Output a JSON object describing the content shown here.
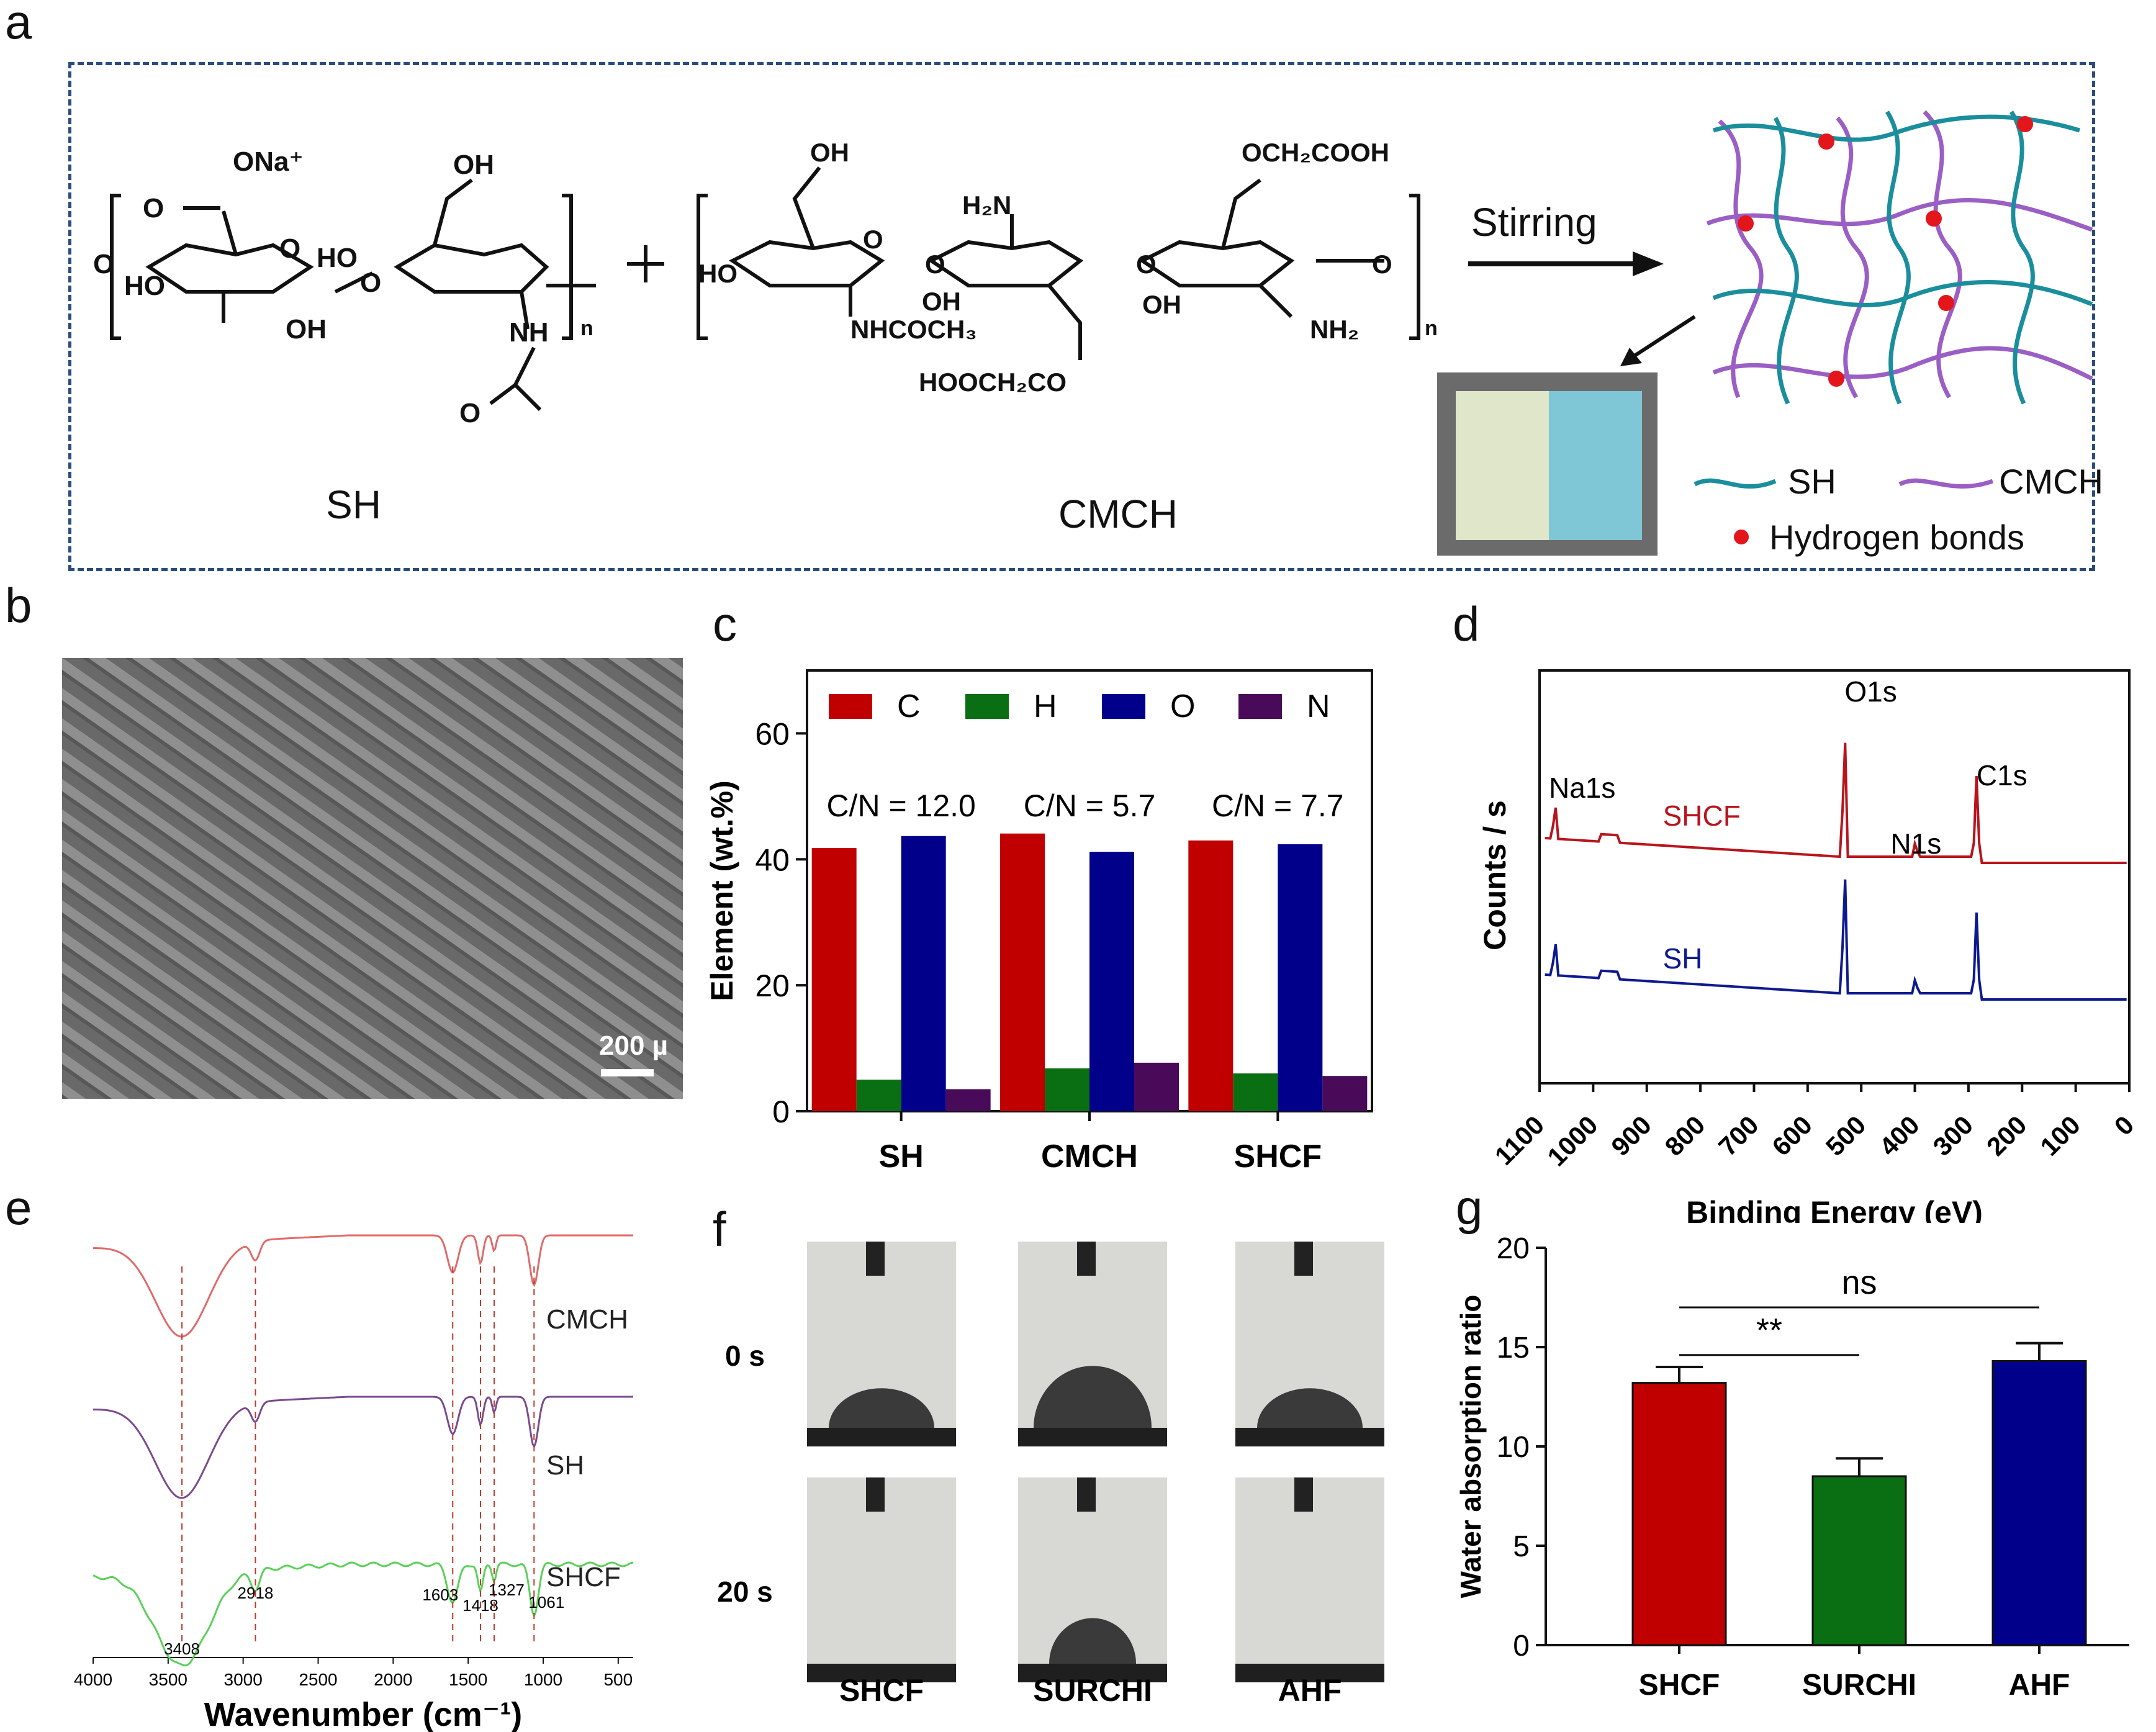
{
  "panel_labels": [
    "a",
    "b",
    "c",
    "d",
    "e",
    "f",
    "g"
  ],
  "panel_a": {
    "sh_label": "SH",
    "cmch_label": "CMCH",
    "arrow_label": "Stirring",
    "legend": {
      "sh": "SH",
      "cmch": "CMCH",
      "hbond": "Hydrogen bonds"
    },
    "colors": {
      "sh": "#1a8e9c",
      "cmch": "#9a5ec4",
      "hbond": "#e3161c",
      "frame": "#2b4c7e"
    },
    "sh_groups": [
      "O",
      "ONa⁺",
      "OH",
      "O",
      "HO",
      "O",
      "HO",
      "OH",
      "O",
      "NH",
      "O",
      "n"
    ],
    "cmch_groups": [
      "OH",
      "H₂N",
      "OCH₂COOH",
      "O",
      "O",
      "O",
      "HO",
      "OH",
      "NHCOCH₃",
      "HOOCH₂CO",
      "OH",
      "NH₂",
      "O",
      "n"
    ]
  },
  "panel_b": {
    "scale_bar": "200 µ"
  },
  "chart_data": [
    {
      "id": "c",
      "type": "bar",
      "categories": [
        "SH",
        "CMCH",
        "SHCF"
      ],
      "series": [
        {
          "name": "C",
          "values": [
            41.8,
            44.1,
            43.0
          ],
          "color": "#c00000"
        },
        {
          "name": "H",
          "values": [
            5.0,
            6.8,
            6.0
          ],
          "color": "#0a6e12"
        },
        {
          "name": "O",
          "values": [
            43.7,
            41.2,
            42.4
          ],
          "color": "#00008b"
        },
        {
          "name": "N",
          "values": [
            3.5,
            7.7,
            5.6
          ],
          "color": "#4a0a5a"
        }
      ],
      "annotations": [
        "C/N = 12.0",
        "C/N = 5.7",
        "C/N = 7.7"
      ],
      "ylabel": "Element (wt.%)",
      "ylim": [
        0,
        70
      ],
      "yticks": [
        0,
        20,
        40,
        60
      ],
      "legend_position": "top"
    },
    {
      "id": "d",
      "type": "line",
      "xlabel": "Binding Energy (eV)",
      "ylabel": "Counts / s",
      "xlim": [
        1100,
        0
      ],
      "xticks": [
        1100,
        1000,
        900,
        800,
        700,
        600,
        500,
        400,
        300,
        200,
        100,
        0
      ],
      "series": [
        {
          "name": "SHCF",
          "color": "#b8141c"
        },
        {
          "name": "SH",
          "color": "#0d1a8e"
        }
      ],
      "peaks": [
        {
          "label": "Na1s",
          "x": 1071
        },
        {
          "label": "O1s",
          "x": 531
        },
        {
          "label": "N1s",
          "x": 399
        },
        {
          "label": "C1s",
          "x": 285
        }
      ]
    },
    {
      "id": "e",
      "type": "line",
      "xlabel": "Wavenumber (cm⁻¹)",
      "xlim": [
        4000,
        400
      ],
      "xticks": [
        4000,
        3500,
        3000,
        2500,
        2000,
        1500,
        1000,
        500
      ],
      "series": [
        {
          "name": "CMCH",
          "color": "#e06a6a"
        },
        {
          "name": "SH",
          "color": "#7a4b8c"
        },
        {
          "name": "SHCF",
          "color": "#5ad05a"
        }
      ],
      "peaks": [
        3408,
        2918,
        1603,
        1418,
        1327,
        1061
      ]
    },
    {
      "id": "g",
      "type": "bar",
      "categories": [
        "SHCF",
        "SURCHI",
        "AHF"
      ],
      "values": [
        13.2,
        8.5,
        14.3
      ],
      "errors": [
        0.8,
        0.9,
        0.9
      ],
      "colors": [
        "#c00000",
        "#0a6e12",
        "#00008b"
      ],
      "ylabel": "Water absorption ratio",
      "ylim": [
        0,
        20
      ],
      "yticks": [
        0,
        5,
        10,
        15,
        20
      ],
      "significance": [
        {
          "label": "ns",
          "from": "SHCF",
          "to": "AHF"
        },
        {
          "label": "**",
          "from": "SHCF",
          "to": "SURCHI"
        }
      ]
    }
  ],
  "panel_f": {
    "row_labels": [
      "0 s",
      "20 s"
    ],
    "col_labels": [
      "SHCF",
      "SURCHI",
      "AHF"
    ]
  }
}
